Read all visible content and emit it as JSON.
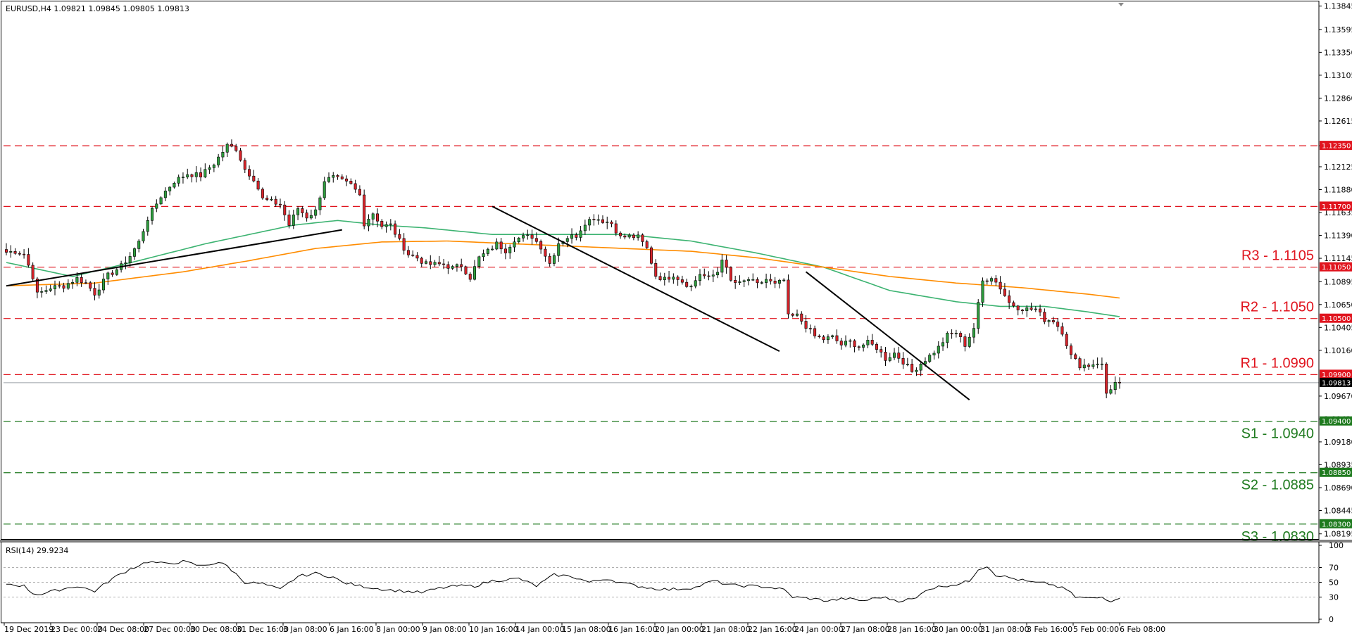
{
  "chart_data": {
    "type": "candlestick",
    "symbol_header": "EURUSD,H4  1.09821 1.09845 1.09805 1.09813",
    "y_range": [
      1.0814,
      1.1388
    ],
    "price_ticks": [
      "1.13845",
      "1.13595",
      "1.13350",
      "1.13105",
      "1.12860",
      "1.12615",
      "1.12350",
      "1.12125",
      "1.11880",
      "1.11635",
      "1.11390",
      "1.11145",
      "1.10895",
      "1.10650",
      "1.10405",
      "1.10160",
      "1.09670",
      "1.09425",
      "1.09180",
      "1.08935",
      "1.08690",
      "1.08445",
      "1.08195"
    ],
    "time_labels": [
      "19 Dec 2019",
      "23 Dec 00:00",
      "24 Dec 08:00",
      "27 Dec 00:00",
      "30 Dec 08:00",
      "31 Dec 16:00",
      "3 Jan 08:00",
      "6 Jan 16:00",
      "8 Jan 00:00",
      "9 Jan 08:00",
      "10 Jan 16:00",
      "14 Jan 00:00",
      "15 Jan 08:00",
      "16 Jan 16:00",
      "20 Jan 00:00",
      "21 Jan 08:00",
      "22 Jan 16:00",
      "24 Jan 00:00",
      "27 Jan 08:00",
      "28 Jan 16:00",
      "30 Jan 00:00",
      "31 Jan 08:00",
      "3 Feb 16:00",
      "5 Feb 00:00",
      "6 Feb 08:00"
    ],
    "levels": [
      {
        "badge": "1.12350",
        "value": 1.1235,
        "kind": "resistance",
        "label": ""
      },
      {
        "badge": "1.11700",
        "value": 1.117,
        "kind": "resistance",
        "label": ""
      },
      {
        "badge": "1.11050",
        "value": 1.1105,
        "kind": "resistance",
        "label": "R3 - 1.1105"
      },
      {
        "badge": "1.10500",
        "value": 1.105,
        "kind": "resistance",
        "label": "R2 - 1.1050"
      },
      {
        "badge": "1.09900",
        "value": 1.099,
        "kind": "resistance",
        "label": "R1 - 1.0990"
      },
      {
        "badge": "1.09400",
        "value": 1.094,
        "kind": "support",
        "label": "S1 - 1.0940"
      },
      {
        "badge": "1.08850",
        "value": 1.0885,
        "kind": "support",
        "label": "S2 - 1.0885"
      },
      {
        "badge": "1.08300",
        "value": 1.083,
        "kind": "support",
        "label": "S3 - 1.0830"
      }
    ],
    "current_price": {
      "badge": "1.09813",
      "value": 1.09813
    },
    "anchors": [
      [
        0,
        1.1121
      ],
      [
        2,
        1.1122
      ],
      [
        4,
        1.1119
      ],
      [
        6,
        1.1095
      ],
      [
        7,
        1.1076
      ],
      [
        10,
        1.1083
      ],
      [
        13,
        1.1085
      ],
      [
        16,
        1.1093
      ],
      [
        18,
        1.1088
      ],
      [
        20,
        1.1077
      ],
      [
        23,
        1.1096
      ],
      [
        26,
        1.1106
      ],
      [
        28,
        1.1117
      ],
      [
        30,
        1.1132
      ],
      [
        32,
        1.1157
      ],
      [
        35,
        1.1181
      ],
      [
        38,
        1.1197
      ],
      [
        41,
        1.1205
      ],
      [
        44,
        1.1203
      ],
      [
        47,
        1.1216
      ],
      [
        50,
        1.1235
      ],
      [
        52,
        1.1232
      ],
      [
        54,
        1.121
      ],
      [
        56,
        1.12
      ],
      [
        58,
        1.1178
      ],
      [
        60,
        1.1175
      ],
      [
        62,
        1.1172
      ],
      [
        64,
        1.115
      ],
      [
        66,
        1.1168
      ],
      [
        68,
        1.1159
      ],
      [
        70,
        1.1165
      ],
      [
        72,
        1.1198
      ],
      [
        74,
        1.1201
      ],
      [
        76,
        1.1197
      ],
      [
        78,
        1.1193
      ],
      [
        80,
        1.1182
      ],
      [
        81,
        1.1152
      ],
      [
        83,
        1.1163
      ],
      [
        85,
        1.1149
      ],
      [
        87,
        1.115
      ],
      [
        89,
        1.1133
      ],
      [
        91,
        1.1119
      ],
      [
        93,
        1.1115
      ],
      [
        95,
        1.1108
      ],
      [
        97,
        1.1108
      ],
      [
        99,
        1.1108
      ],
      [
        101,
        1.1104
      ],
      [
        103,
        1.1107
      ],
      [
        105,
        1.1094
      ],
      [
        107,
        1.1115
      ],
      [
        109,
        1.1122
      ],
      [
        111,
        1.113
      ],
      [
        113,
        1.1123
      ],
      [
        115,
        1.1135
      ],
      [
        117,
        1.1137
      ],
      [
        119,
        1.1138
      ],
      [
        121,
        1.1127
      ],
      [
        123,
        1.1109
      ],
      [
        125,
        1.1131
      ],
      [
        127,
        1.1137
      ],
      [
        129,
        1.1139
      ],
      [
        131,
        1.1153
      ],
      [
        133,
        1.1158
      ],
      [
        135,
        1.1155
      ],
      [
        137,
        1.1152
      ],
      [
        139,
        1.1137
      ],
      [
        141,
        1.1138
      ],
      [
        143,
        1.1137
      ],
      [
        145,
        1.1125
      ],
      [
        147,
        1.1096
      ],
      [
        149,
        1.1092
      ],
      [
        151,
        1.1097
      ],
      [
        153,
        1.109
      ],
      [
        155,
        1.1084
      ],
      [
        157,
        1.1098
      ],
      [
        159,
        1.1093
      ],
      [
        161,
        1.11
      ],
      [
        162,
        1.1115
      ],
      [
        164,
        1.109
      ],
      [
        166,
        1.1087
      ],
      [
        168,
        1.1092
      ],
      [
        170,
        1.1086
      ],
      [
        172,
        1.1092
      ],
      [
        174,
        1.1086
      ],
      [
        176,
        1.1091
      ],
      [
        177,
        1.1052
      ],
      [
        179,
        1.1053
      ],
      [
        181,
        1.1042
      ],
      [
        183,
        1.1031
      ],
      [
        185,
        1.1028
      ],
      [
        187,
        1.103
      ],
      [
        189,
        1.1022
      ],
      [
        191,
        1.1025
      ],
      [
        193,
        1.102
      ],
      [
        195,
        1.1024
      ],
      [
        197,
        1.1019
      ],
      [
        199,
        1.1007
      ],
      [
        201,
        1.1013
      ],
      [
        203,
        1.1004
      ],
      [
        205,
        1.0993
      ],
      [
        207,
        1.1002
      ],
      [
        209,
        1.101
      ],
      [
        211,
        1.1019
      ],
      [
        213,
        1.1032
      ],
      [
        215,
        1.1035
      ],
      [
        217,
        1.1022
      ],
      [
        219,
        1.104
      ],
      [
        221,
        1.109
      ],
      [
        223,
        1.1095
      ],
      [
        225,
        1.1083
      ],
      [
        227,
        1.1067
      ],
      [
        229,
        1.1062
      ],
      [
        231,
        1.106
      ],
      [
        233,
        1.106
      ],
      [
        235,
        1.1049
      ],
      [
        237,
        1.1048
      ],
      [
        239,
        1.1036
      ],
      [
        241,
        1.101
      ],
      [
        243,
        1.1
      ],
      [
        245,
        1.1
      ],
      [
        247,
        1.1003
      ],
      [
        248,
        1.1
      ],
      [
        249,
        1.097
      ],
      [
        251,
        1.0981
      ],
      [
        252,
        1.0981
      ]
    ],
    "ma_green": [
      [
        0,
        1.111
      ],
      [
        15,
        1.1095
      ],
      [
        30,
        1.1112
      ],
      [
        45,
        1.113
      ],
      [
        55,
        1.114
      ],
      [
        65,
        1.115
      ],
      [
        75,
        1.1155
      ],
      [
        85,
        1.115
      ],
      [
        95,
        1.1147
      ],
      [
        110,
        1.114
      ],
      [
        125,
        1.114
      ],
      [
        140,
        1.114
      ],
      [
        155,
        1.1133
      ],
      [
        170,
        1.112
      ],
      [
        185,
        1.1105
      ],
      [
        200,
        1.108
      ],
      [
        215,
        1.1068
      ],
      [
        225,
        1.1063
      ],
      [
        235,
        1.1063
      ],
      [
        245,
        1.1057
      ],
      [
        252,
        1.1052
      ]
    ],
    "ma_orange": [
      [
        0,
        1.1085
      ],
      [
        20,
        1.1088
      ],
      [
        40,
        1.11
      ],
      [
        55,
        1.1112
      ],
      [
        70,
        1.1125
      ],
      [
        85,
        1.1132
      ],
      [
        100,
        1.1133
      ],
      [
        115,
        1.113
      ],
      [
        130,
        1.1127
      ],
      [
        140,
        1.1125
      ],
      [
        155,
        1.1122
      ],
      [
        170,
        1.1115
      ],
      [
        185,
        1.1105
      ],
      [
        200,
        1.1095
      ],
      [
        215,
        1.1088
      ],
      [
        230,
        1.1083
      ],
      [
        245,
        1.1076
      ],
      [
        252,
        1.1072
      ]
    ],
    "trendlines": [
      {
        "from": [
          0,
          1.1085
        ],
        "to": [
          76,
          1.1145
        ]
      },
      {
        "from": [
          110,
          1.117
        ],
        "to": [
          175,
          1.1015
        ]
      },
      {
        "from": [
          181,
          1.11
        ],
        "to": [
          218,
          1.0963
        ]
      }
    ],
    "rsi": {
      "header": "RSI(14) 29.9234",
      "ticks": [
        "100",
        "70",
        "50",
        "30",
        "0"
      ],
      "levels": [
        70,
        50,
        30
      ],
      "anchors": [
        [
          0,
          48
        ],
        [
          4,
          45
        ],
        [
          6,
          35
        ],
        [
          8,
          34
        ],
        [
          12,
          40
        ],
        [
          16,
          45
        ],
        [
          20,
          38
        ],
        [
          24,
          55
        ],
        [
          28,
          68
        ],
        [
          32,
          78
        ],
        [
          36,
          75
        ],
        [
          40,
          78
        ],
        [
          44,
          72
        ],
        [
          48,
          77
        ],
        [
          50,
          72
        ],
        [
          54,
          50
        ],
        [
          58,
          48
        ],
        [
          62,
          40
        ],
        [
          66,
          58
        ],
        [
          70,
          62
        ],
        [
          74,
          57
        ],
        [
          76,
          50
        ],
        [
          80,
          45
        ],
        [
          86,
          40
        ],
        [
          90,
          38
        ],
        [
          94,
          36
        ],
        [
          98,
          42
        ],
        [
          102,
          45
        ],
        [
          106,
          45
        ],
        [
          110,
          52
        ],
        [
          116,
          55
        ],
        [
          120,
          45
        ],
        [
          124,
          60
        ],
        [
          128,
          58
        ],
        [
          132,
          50
        ],
        [
          136,
          55
        ],
        [
          140,
          48
        ],
        [
          146,
          42
        ],
        [
          150,
          40
        ],
        [
          156,
          43
        ],
        [
          160,
          52
        ],
        [
          164,
          46
        ],
        [
          168,
          45
        ],
        [
          172,
          44
        ],
        [
          176,
          40
        ],
        [
          178,
          30
        ],
        [
          182,
          28
        ],
        [
          186,
          25
        ],
        [
          190,
          28
        ],
        [
          194,
          25
        ],
        [
          198,
          30
        ],
        [
          202,
          25
        ],
        [
          206,
          28
        ],
        [
          208,
          40
        ],
        [
          212,
          45
        ],
        [
          216,
          48
        ],
        [
          218,
          52
        ],
        [
          220,
          68
        ],
        [
          222,
          72
        ],
        [
          224,
          60
        ],
        [
          228,
          55
        ],
        [
          232,
          50
        ],
        [
          236,
          48
        ],
        [
          240,
          40
        ],
        [
          242,
          30
        ],
        [
          246,
          28
        ],
        [
          248,
          30
        ],
        [
          250,
          25
        ],
        [
          252,
          30
        ]
      ]
    }
  }
}
